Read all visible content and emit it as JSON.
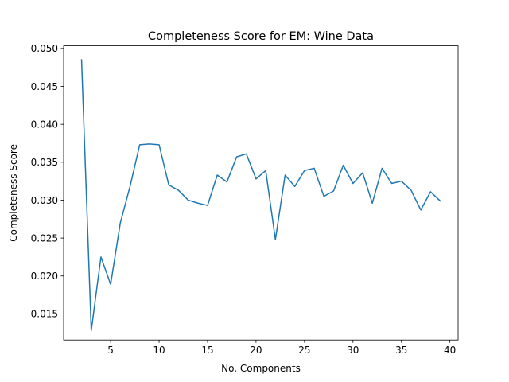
{
  "chart_data": {
    "type": "line",
    "title": "Completeness Score for EM: Wine Data",
    "xlabel": "No. Components",
    "ylabel": "Completeness Score",
    "xlim": [
      0.15,
      40.85
    ],
    "ylim": [
      0.01156,
      0.05034
    ],
    "xticks": [
      5,
      10,
      15,
      20,
      25,
      30,
      35,
      40
    ],
    "xtick_labels": [
      "5",
      "10",
      "15",
      "20",
      "25",
      "30",
      "35",
      "40"
    ],
    "yticks": [
      0.015,
      0.02,
      0.025,
      0.03,
      0.035,
      0.04,
      0.045,
      0.05
    ],
    "ytick_labels": [
      "0.015",
      "0.020",
      "0.025",
      "0.030",
      "0.035",
      "0.040",
      "0.045",
      "0.050"
    ],
    "grid": false,
    "series": [
      {
        "color": "#1f77b4",
        "x": [
          2,
          3,
          4,
          5,
          6,
          7,
          8,
          9,
          10,
          11,
          12,
          13,
          14,
          15,
          16,
          17,
          18,
          19,
          20,
          21,
          22,
          23,
          24,
          25,
          26,
          27,
          28,
          29,
          30,
          31,
          32,
          33,
          34,
          35,
          36,
          37,
          38,
          39
        ],
        "y": [
          0.0485,
          0.0128,
          0.0225,
          0.0189,
          0.027,
          0.0318,
          0.0373,
          0.0374,
          0.0373,
          0.032,
          0.0313,
          0.03,
          0.0296,
          0.0293,
          0.0333,
          0.0324,
          0.0357,
          0.0361,
          0.0328,
          0.0339,
          0.0248,
          0.0333,
          0.0318,
          0.0339,
          0.0342,
          0.0305,
          0.0312,
          0.0346,
          0.0322,
          0.0336,
          0.0296,
          0.0342,
          0.0322,
          0.0325,
          0.0313,
          0.0287,
          0.0311,
          0.0299
        ]
      }
    ]
  }
}
